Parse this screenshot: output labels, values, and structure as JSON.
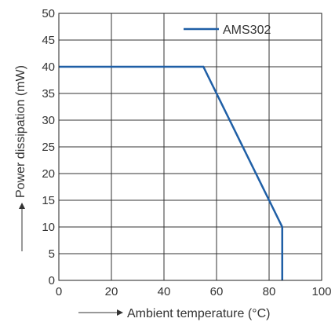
{
  "chart_data": {
    "type": "line",
    "xlabel": "Ambient temperature (°C)",
    "ylabel": "Power dissipation (mW)",
    "xlim": [
      0,
      100
    ],
    "ylim": [
      0,
      50
    ],
    "x_ticks": [
      0,
      20,
      40,
      60,
      80,
      100
    ],
    "y_ticks": [
      0,
      5,
      10,
      15,
      20,
      25,
      30,
      35,
      40,
      45,
      50
    ],
    "grid": true,
    "legend_position": "top-right",
    "series": [
      {
        "name": "AMS302",
        "color": "#1f5fa6",
        "points": [
          {
            "x": 0,
            "y": 40
          },
          {
            "x": 55,
            "y": 40
          },
          {
            "x": 85,
            "y": 10
          },
          {
            "x": 85,
            "y": 0
          }
        ]
      }
    ]
  }
}
